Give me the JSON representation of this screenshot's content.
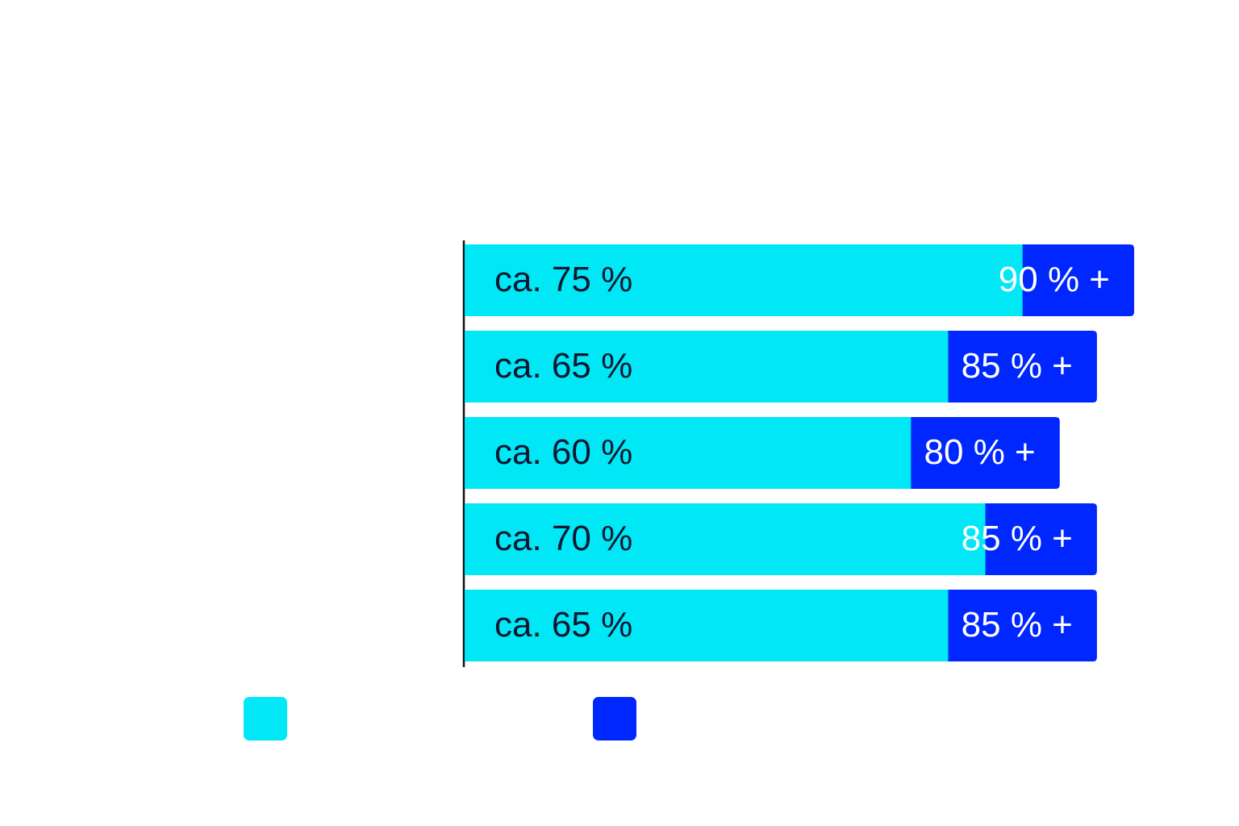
{
  "chart_data": {
    "type": "bar",
    "orientation": "horizontal",
    "overlap": true,
    "categories": [
      null,
      null,
      null,
      null,
      null
    ],
    "xlim": [
      0,
      90
    ],
    "series": [
      {
        "color": "#0027ff",
        "values": [
          90,
          85,
          80,
          85,
          85
        ],
        "value_labels": [
          "90 % +",
          "85 % +",
          "80 % +",
          "85 % +",
          "85 % +"
        ]
      },
      {
        "color": "#00e8f5",
        "values": [
          75,
          65,
          60,
          70,
          65
        ],
        "value_labels": [
          "ca. 75 %",
          "ca. 65 %",
          "ca. 60 %",
          "ca. 70 %",
          "ca. 65 %"
        ]
      }
    ]
  }
}
